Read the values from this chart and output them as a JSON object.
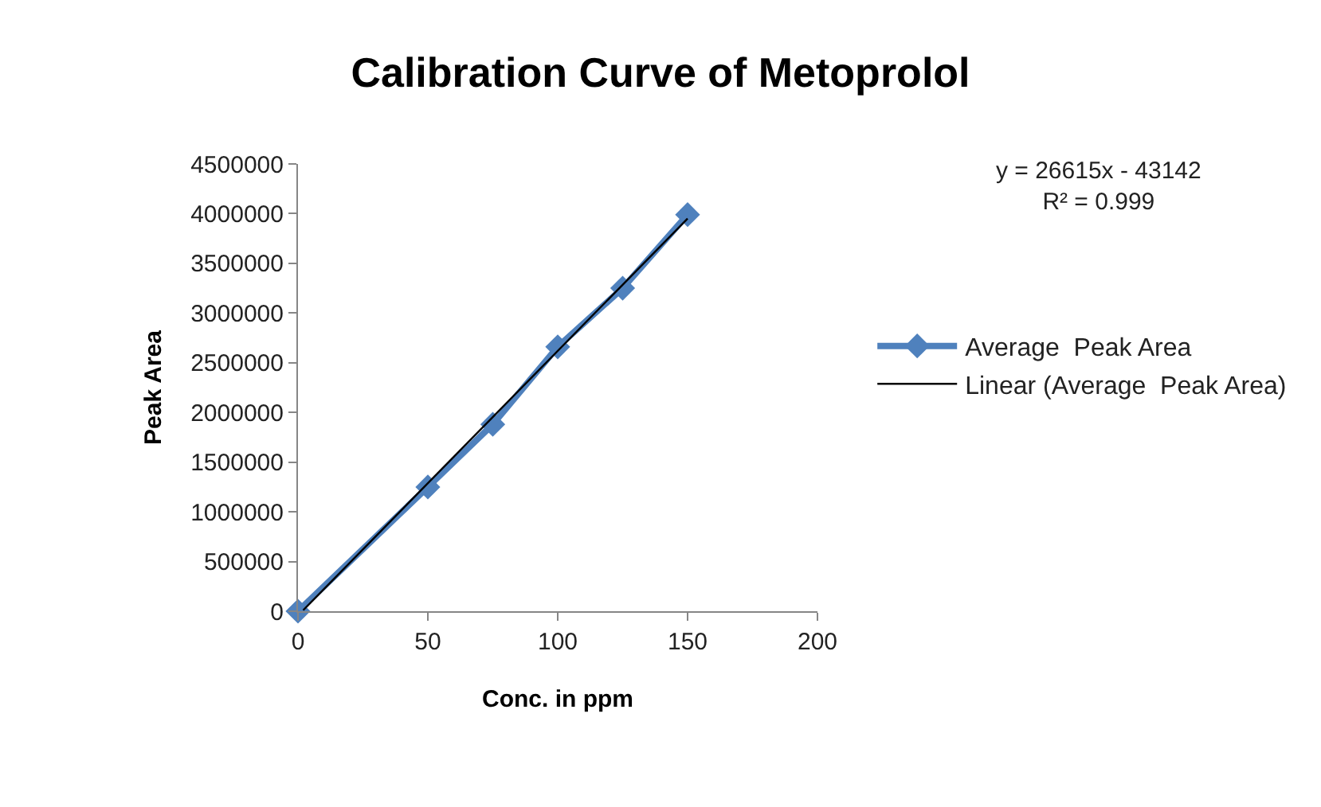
{
  "chart_data": {
    "type": "line",
    "title": "Calibration Curve of Metoprolol",
    "xlabel": "Conc. in ppm",
    "ylabel": "Peak Area",
    "x": [
      0,
      50,
      75,
      100,
      125,
      150
    ],
    "series": [
      {
        "name": "Average  Peak Area",
        "color": "#4f81bd",
        "values": [
          0,
          1250000,
          1880000,
          2660000,
          3250000,
          3990000
        ],
        "marker": "diamond"
      },
      {
        "name": "Linear (Average  Peak Area)",
        "color": "#000000",
        "type": "line",
        "x": [
          2,
          150
        ],
        "values": [
          10000,
          3950000
        ],
        "marker": "none"
      }
    ],
    "xlim": [
      0,
      200
    ],
    "xticks": [
      0,
      50,
      100,
      150,
      200
    ],
    "ylim": [
      0,
      4500000
    ],
    "yticks": [
      0,
      500000,
      1000000,
      1500000,
      2000000,
      2500000,
      3000000,
      3500000,
      4000000,
      4500000
    ],
    "annotations": [
      "y = 26615x - 43142",
      "R² = 0.999"
    ],
    "legend": "right"
  }
}
